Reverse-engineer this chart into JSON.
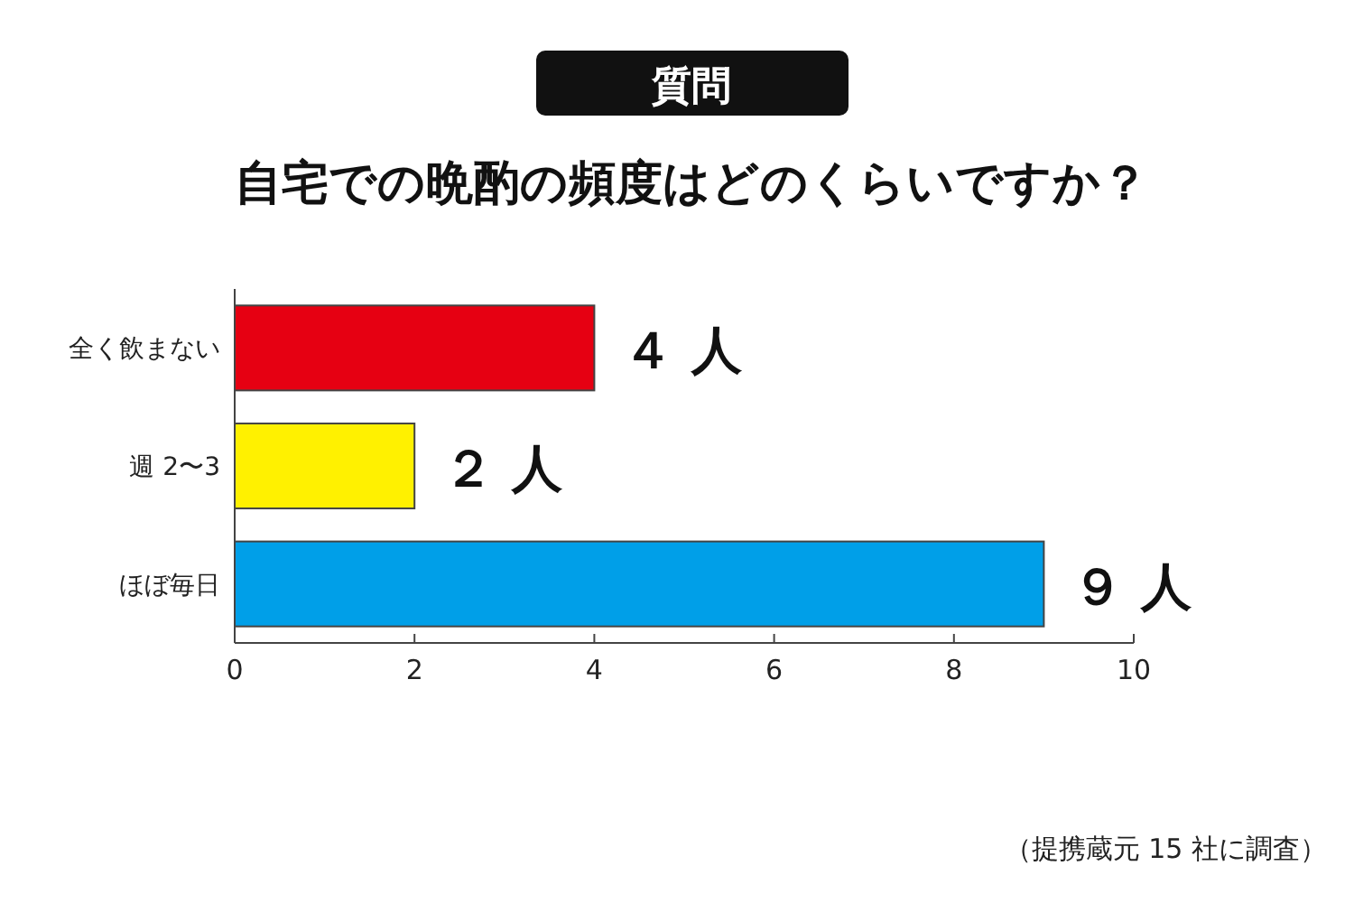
{
  "chart_data": {
    "type": "bar",
    "orientation": "horizontal",
    "title": "質問",
    "subtitle": "自宅での晩酌の頻度はどのくらいですか？",
    "categories": [
      "全く飲まない",
      "週 2〜3",
      "ほぼ毎日"
    ],
    "values": [
      4,
      2,
      9
    ],
    "colors": [
      "#e60012",
      "#fff100",
      "#009fe8"
    ],
    "value_labels": [
      "４ 人",
      "２ 人",
      "９ 人"
    ],
    "xlim": [
      0,
      10
    ],
    "xticks": [
      0,
      2,
      4,
      6,
      8,
      10
    ],
    "grid": false,
    "annotations": [
      "（提携蔵元 15 社に調査）"
    ]
  }
}
